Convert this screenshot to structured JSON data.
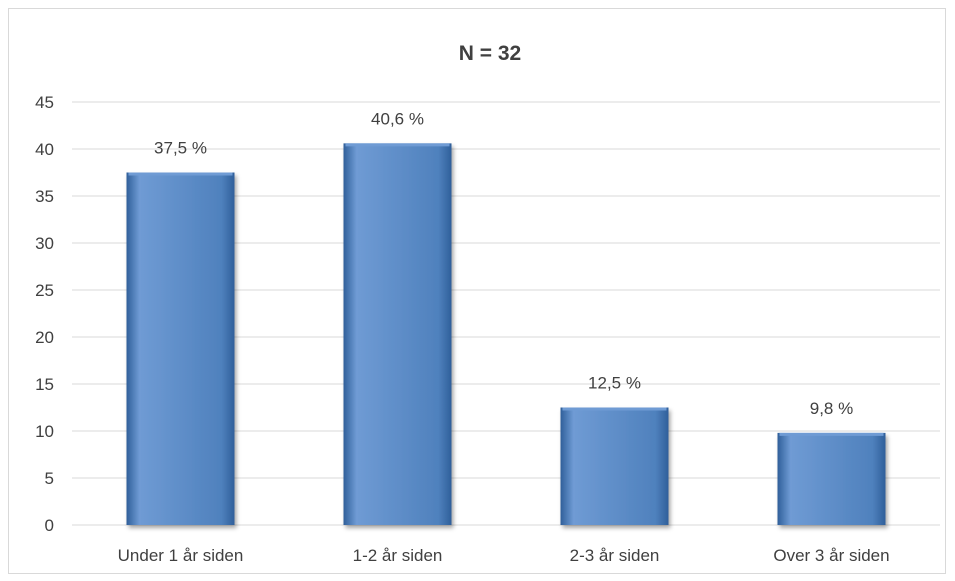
{
  "chart_data": {
    "type": "bar",
    "title": "N = 32",
    "xlabel": "",
    "ylabel": "",
    "categories": [
      "Under 1 år siden",
      "1-2 år siden",
      "2-3 år siden",
      "Over 3 år siden"
    ],
    "values": [
      37.5,
      40.6,
      12.5,
      9.8
    ],
    "data_labels": [
      "37,5 %",
      "40,6 %",
      "12,5 %",
      "9,8 %"
    ],
    "ylim": [
      0,
      45
    ],
    "yticks": [
      0,
      5,
      10,
      15,
      20,
      25,
      30,
      35,
      40,
      45
    ],
    "grid": true,
    "legend": "none",
    "colors": {
      "bar": "#4f81bd",
      "bar_light": "#6f9bd4",
      "bar_dark": "#2f5f9a",
      "gridline": "#d9d9d9",
      "text": "#404040"
    }
  }
}
